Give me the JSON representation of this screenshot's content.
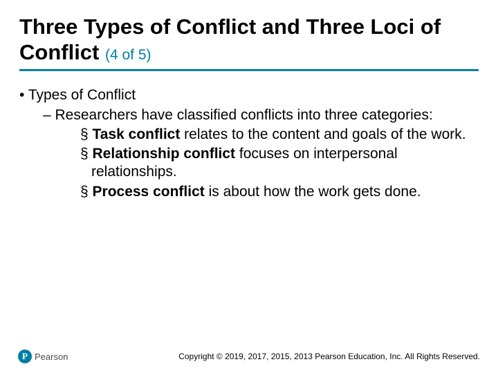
{
  "title": {
    "main": "Three Types of Conflict and Three Loci of Conflict ",
    "sub": "(4 of 5)"
  },
  "content": {
    "l1": "Types of Conflict",
    "l2": "Researchers have classified conflicts into three categories:",
    "l3a_bold": "Task conflict",
    "l3a_rest": " relates to the content and goals of the work.",
    "l3b_bold": "Relationship conflict",
    "l3b_rest": " focuses on interpersonal relationships.",
    "l3c_bold": "Process conflict",
    "l3c_rest": " is about how the work gets done."
  },
  "footer": {
    "logo_letter": "P",
    "logo_text": "Pearson",
    "copyright": "Copyright © 2019, 2017, 2015, 2013 Pearson Education, Inc. All Rights Reserved."
  },
  "colors": {
    "accent": "#007fa3",
    "text": "#000000",
    "background": "#ffffff"
  }
}
